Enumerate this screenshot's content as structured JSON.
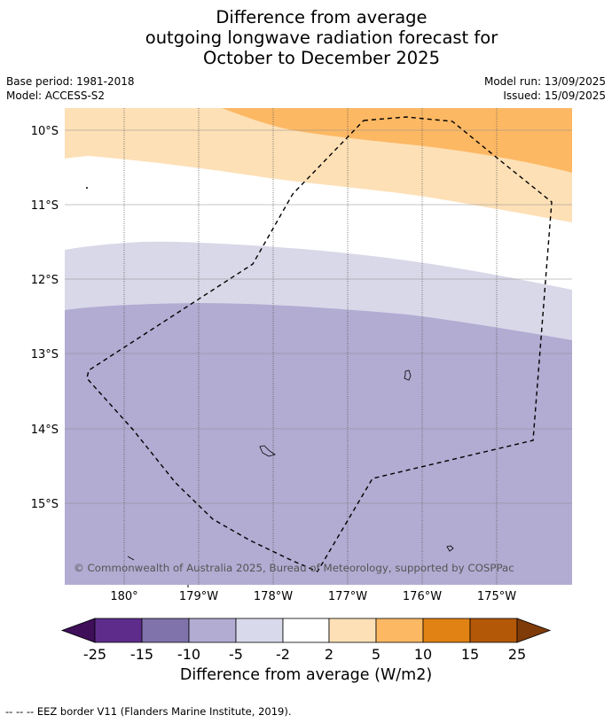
{
  "title": {
    "line1": "Difference from average",
    "line2": "outgoing longwave radiation forecast for",
    "line3": "October to December 2025"
  },
  "info": {
    "base_period": "Base period: 1981-2018",
    "model": "Model: ACCESS-S2",
    "model_run": "Model run: 13/09/2025",
    "issued": "Issued: 15/09/2025"
  },
  "map": {
    "lat_labels": [
      "10°S",
      "11°S",
      "12°S",
      "13°S",
      "14°S",
      "15°S"
    ],
    "lon_labels": [
      "180°",
      "179°W",
      "178°W",
      "177°W",
      "176°W",
      "175°W"
    ],
    "copyright": "© Commonwealth of Australia 2025, Bureau of Meteorology, supported by COSPPac",
    "zones": [
      {
        "range": "2 to 5",
        "color": "#fde0b6"
      },
      {
        "range": "5 to 10",
        "color": "#fdb863"
      },
      {
        "range": "-2 to 2",
        "color": "#ffffff"
      },
      {
        "range": "-5 to -2",
        "color": "#d8d8e9"
      },
      {
        "range": "-10 to -5",
        "color": "#b2abd2"
      }
    ]
  },
  "colorbar": {
    "title": "Difference from average (W/m2)",
    "ticks": [
      "-25",
      "-15",
      "-10",
      "-5",
      "-2",
      "2",
      "5",
      "10",
      "15",
      "25"
    ],
    "colors": [
      "#3f0f5a",
      "#5e2d8c",
      "#8073ac",
      "#b2abd2",
      "#d8daeb",
      "#ffffff",
      "#fee0b6",
      "#fdb863",
      "#e08214",
      "#b35806",
      "#7f3b08"
    ]
  },
  "footer": {
    "legend_text": "--  --  -- EEZ border V11 (Flanders Marine Institute, 2019)."
  }
}
